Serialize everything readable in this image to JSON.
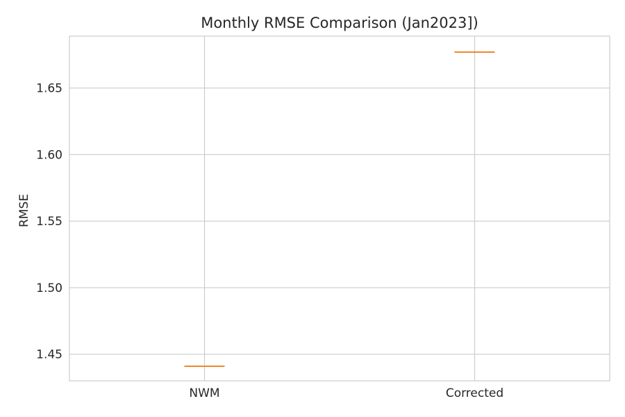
{
  "chart_data": {
    "type": "box",
    "title": "Monthly RMSE Comparison (Jan2023])",
    "xlabel": "",
    "ylabel": "RMSE",
    "categories": [
      "NWM",
      "Corrected"
    ],
    "medians": [
      1.441,
      1.677
    ],
    "ylim": [
      1.43,
      1.689
    ],
    "yticks": [
      1.45,
      1.5,
      1.55,
      1.6,
      1.65
    ],
    "ytick_labels": [
      "1.45",
      "1.50",
      "1.55",
      "1.60",
      "1.65"
    ],
    "grid": true,
    "colors": {
      "median": "#ff7f0e",
      "box": "#000000",
      "grid": "#cccccc",
      "frame": "#cccccc",
      "text": "#262626"
    }
  }
}
